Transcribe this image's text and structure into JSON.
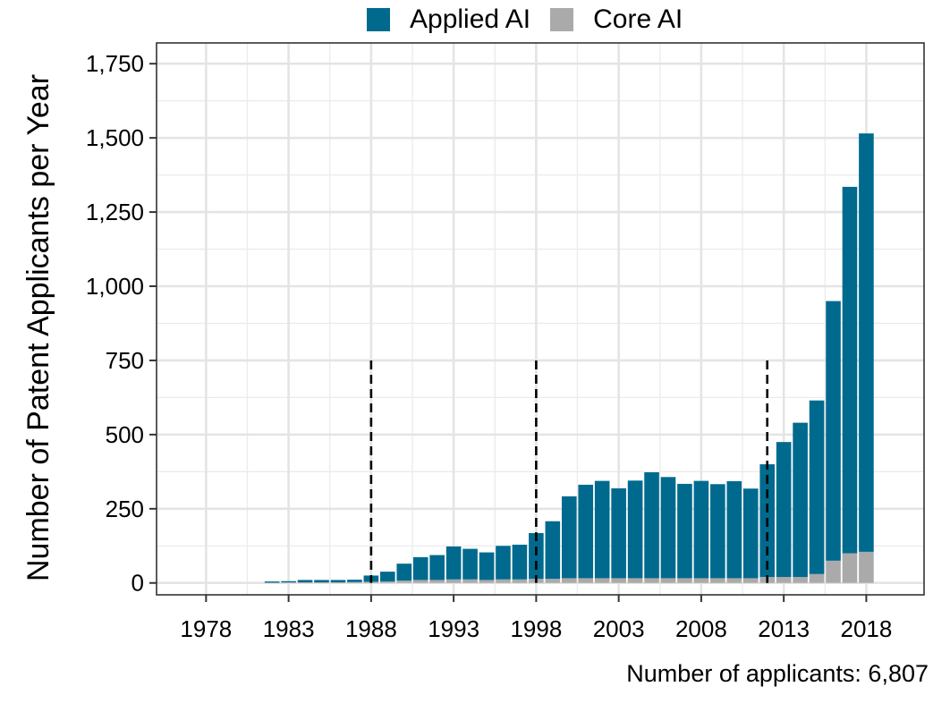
{
  "chart_data": {
    "type": "bar",
    "stacked": true,
    "ylabel": "Number of Patent Applicants per Year",
    "xlabel": "",
    "xlim": [
      1975,
      2021.5
    ],
    "ylim": [
      -40,
      1820
    ],
    "x_ticks": [
      1978,
      1983,
      1988,
      1993,
      1998,
      2003,
      2008,
      2013,
      2018
    ],
    "y_ticks": [
      0,
      250,
      500,
      750,
      1000,
      1250,
      1500,
      1750
    ],
    "y_tick_labels": [
      "0",
      "250",
      "500",
      "750",
      "1,000",
      "1,250",
      "1,500",
      "1,750"
    ],
    "grid": true,
    "legend_position": "top",
    "x": [
      1981,
      1982,
      1983,
      1984,
      1985,
      1986,
      1987,
      1988,
      1989,
      1990,
      1991,
      1992,
      1993,
      1994,
      1995,
      1996,
      1997,
      1998,
      1999,
      2000,
      2001,
      2002,
      2003,
      2004,
      2005,
      2006,
      2007,
      2008,
      2009,
      2010,
      2011,
      2012,
      2013,
      2014,
      2015,
      2016,
      2017,
      2018
    ],
    "series": [
      {
        "name": "Core AI",
        "color": "#aaaaaa",
        "values": [
          0,
          1,
          2,
          2,
          2,
          2,
          3,
          4,
          5,
          8,
          10,
          10,
          12,
          12,
          10,
          12,
          12,
          14,
          14,
          16,
          16,
          16,
          16,
          16,
          16,
          16,
          16,
          16,
          16,
          16,
          16,
          20,
          20,
          20,
          30,
          75,
          100,
          105
        ]
      },
      {
        "name": "Applied AI",
        "color": "#006a8e",
        "values": [
          0,
          4,
          4,
          8,
          8,
          8,
          8,
          21,
          33,
          57,
          77,
          84,
          111,
          103,
          93,
          113,
          117,
          154,
          194,
          276,
          315,
          328,
          303,
          329,
          357,
          341,
          318,
          328,
          317,
          327,
          302,
          380,
          455,
          520,
          585,
          875,
          1235,
          1410
        ]
      }
    ],
    "reference_lines": [
      {
        "x": 1988,
        "y_top": 750,
        "style": "dashed"
      },
      {
        "x": 1998,
        "y_top": 750,
        "style": "dashed"
      },
      {
        "x": 2012,
        "y_top": 750,
        "style": "dashed"
      }
    ],
    "caption": "Number of applicants: 6,807"
  },
  "legend": {
    "items": [
      {
        "label": "Applied AI",
        "color": "#006a8e"
      },
      {
        "label": "Core AI",
        "color": "#aaaaaa"
      }
    ]
  }
}
